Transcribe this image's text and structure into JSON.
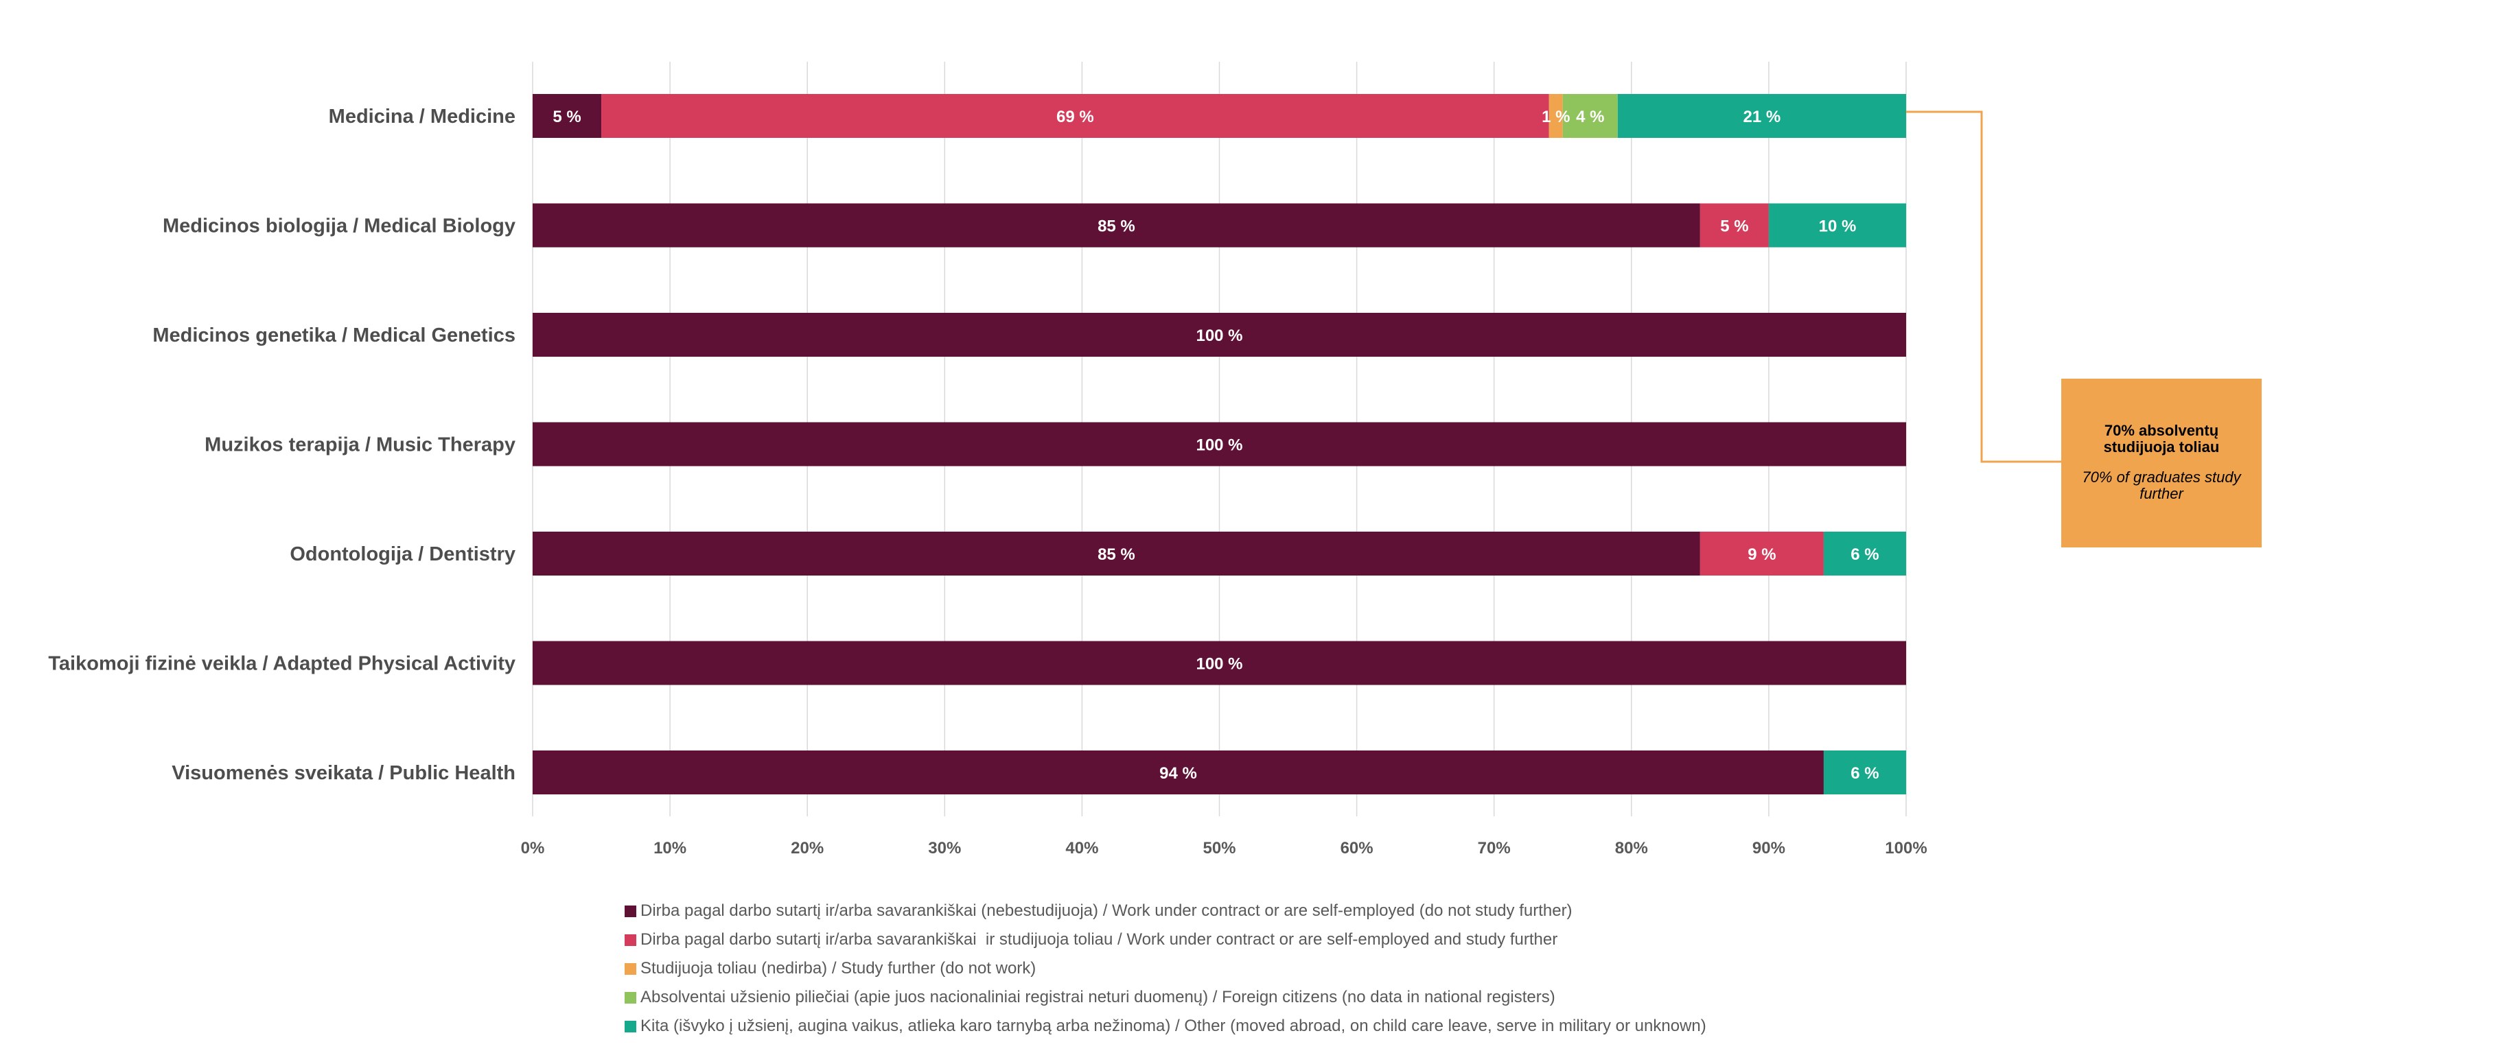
{
  "chart_data": {
    "type": "bar",
    "orientation": "horizontal",
    "stacked": "percent",
    "categories": [
      "Medicina / Medicine",
      "Medicinos biologija / Medical Biology",
      "Medicinos genetika / Medical Genetics",
      "Muzikos terapija / Music Therapy",
      "Odontologija / Dentistry",
      "Taikomoji fizinė veikla / Adapted Physical Activity",
      "Visuomenės sveikata / Public Health"
    ],
    "series": [
      {
        "name": "Dirba pagal darbo sutartį ir/arba savarankiškai (nebestudijuoja) / Work under contract or are self-employed (do not study further)",
        "color": "#5f1035",
        "values": [
          5,
          85,
          100,
          100,
          85,
          100,
          94
        ]
      },
      {
        "name": "Dirba pagal darbo sutartį ir/arba savarankiškai  ir studijuoja toliau / Work under contract or are self-employed and study further",
        "color": "#d53b5a",
        "values": [
          69,
          5,
          0,
          0,
          9,
          0,
          0
        ]
      },
      {
        "name": "Studijuoja toliau (nedirba) / Study further (do not work)",
        "color": "#f0a44e",
        "values": [
          1,
          0,
          0,
          0,
          0,
          0,
          0
        ]
      },
      {
        "name": "Absolventai užsienio piliečiai (apie juos nacionaliniai registrai neturi duomenų) / Foreign citizens (no data in national registers)",
        "color": "#8fc45d",
        "values": [
          4,
          0,
          0,
          0,
          0,
          0,
          0
        ]
      },
      {
        "name": "Kita (išvyko į užsienį, augina vaikus, atlieka karo tarnybą arba nežinoma) / Other (moved abroad, on child care leave, serve in military or unknown)",
        "color": "#16a98b",
        "values": [
          21,
          10,
          0,
          0,
          6,
          0,
          6
        ]
      }
    ],
    "x_ticks": [
      "0%",
      "10%",
      "20%",
      "30%",
      "40%",
      "50%",
      "60%",
      "70%",
      "80%",
      "90%",
      "100%"
    ],
    "xlim": [
      0,
      100
    ],
    "value_suffix": " %",
    "grid": true,
    "legend_position": "bottom"
  },
  "callout": {
    "title": "70% absolventų studijuoja toliau",
    "subtitle": "70% of graduates study further",
    "color": "#f0a44e"
  }
}
